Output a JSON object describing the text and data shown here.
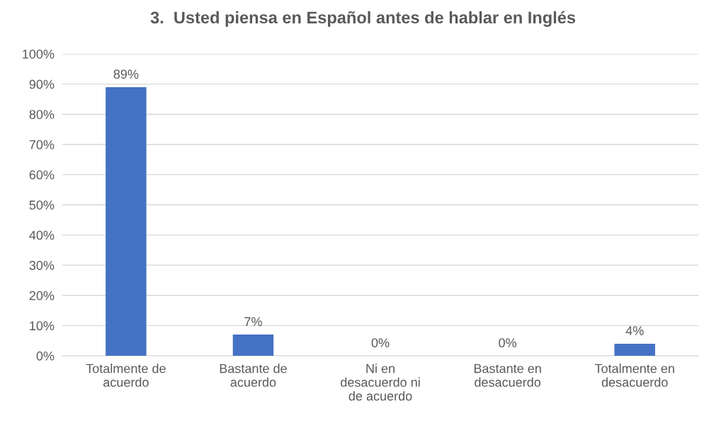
{
  "chart_data": {
    "type": "bar",
    "title": "3.  Usted piensa en Español antes de hablar en Inglés",
    "categories": [
      "Totalmente de acuerdo",
      "Bastante de acuerdo",
      "Ni en desacuerdo ni de acuerdo",
      "Bastante en desacuerdo",
      "Totalmente en desacuerdo"
    ],
    "values": [
      89,
      7,
      0,
      0,
      4
    ],
    "color": "#4472c4",
    "ylim": [
      0,
      100
    ],
    "yticks": [
      {
        "value": 0,
        "label": "0%"
      },
      {
        "value": 10,
        "label": "10%"
      },
      {
        "value": 20,
        "label": "20%"
      },
      {
        "value": 30,
        "label": "30%"
      },
      {
        "value": 40,
        "label": "40%"
      },
      {
        "value": 50,
        "label": "50%"
      },
      {
        "value": 60,
        "label": "60%"
      },
      {
        "value": 70,
        "label": "70%"
      },
      {
        "value": 80,
        "label": "80%"
      },
      {
        "value": 90,
        "label": "90%"
      },
      {
        "value": 100,
        "label": "100%"
      }
    ],
    "value_labels": [
      "89%",
      "7%",
      "0%",
      "0%",
      "4%"
    ],
    "grid": "y",
    "legend": false
  }
}
